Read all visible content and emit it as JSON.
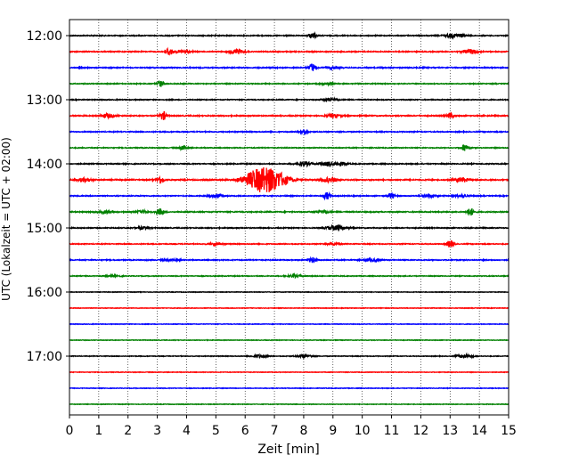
{
  "chart_data": {
    "type": "line",
    "title": "",
    "xlabel": "Zeit  [min]",
    "ylabel": "UTC (Lokalzeit = UTC + 02:00)",
    "xlim": [
      0,
      15
    ],
    "x_ticks": [
      "0",
      "1",
      "2",
      "3",
      "4",
      "5",
      "6",
      "7",
      "8",
      "9",
      "10",
      "11",
      "12",
      "13",
      "14",
      "15"
    ],
    "y_tick_labels": [
      "12:00",
      "13:00",
      "14:00",
      "15:00",
      "16:00",
      "17:00"
    ],
    "grid": "vertical dotted at each minute",
    "colors": [
      "#000000",
      "#ff0000",
      "#0000ff",
      "#008000"
    ],
    "series": [
      {
        "start": "12:00",
        "color": "#000000",
        "noise": 0.5,
        "events": [
          [
            8.3,
            3.5
          ],
          [
            13.0,
            1.5
          ],
          [
            13.3,
            1.5
          ]
        ]
      },
      {
        "start": "12:15",
        "color": "#ff0000",
        "noise": 0.5,
        "events": [
          [
            3.4,
            4.5
          ],
          [
            3.9,
            1.5
          ],
          [
            5.7,
            2.5
          ],
          [
            13.7,
            2.5
          ]
        ]
      },
      {
        "start": "12:30",
        "color": "#0000ff",
        "noise": 0.55,
        "events": [
          [
            8.3,
            4.5
          ],
          [
            9.0,
            1.2
          ]
        ]
      },
      {
        "start": "12:45",
        "color": "#008000",
        "noise": 0.45,
        "events": [
          [
            3.1,
            3.5
          ],
          [
            8.8,
            1.0
          ]
        ]
      },
      {
        "start": "13:00",
        "color": "#000000",
        "noise": 0.45,
        "events": [
          [
            8.9,
            1.8
          ]
        ]
      },
      {
        "start": "13:15",
        "color": "#ff0000",
        "noise": 0.55,
        "events": [
          [
            1.3,
            2.0
          ],
          [
            3.2,
            4.5
          ],
          [
            9.0,
            1.5
          ],
          [
            13.0,
            3.0
          ]
        ]
      },
      {
        "start": "13:30",
        "color": "#0000ff",
        "noise": 0.5,
        "events": [
          [
            8.0,
            3.5
          ]
        ]
      },
      {
        "start": "13:45",
        "color": "#008000",
        "noise": 0.45,
        "events": [
          [
            3.9,
            3.0
          ],
          [
            13.5,
            4.0
          ]
        ]
      },
      {
        "start": "14:00",
        "color": "#000000",
        "noise": 0.5,
        "events": [
          [
            8.0,
            2.5
          ],
          [
            8.8,
            2.0
          ],
          [
            9.2,
            1.5
          ]
        ]
      },
      {
        "start": "14:15",
        "color": "#ff0000",
        "noise": 0.6,
        "events": [
          [
            0.5,
            2.0
          ],
          [
            3.1,
            4.0
          ],
          [
            6.3,
            6.5
          ],
          [
            6.7,
            8.5
          ],
          [
            7.1,
            6.0
          ],
          [
            8.9,
            2.5
          ],
          [
            13.4,
            2.5
          ]
        ]
      },
      {
        "start": "14:30",
        "color": "#0000ff",
        "noise": 0.5,
        "events": [
          [
            5.0,
            2.0
          ],
          [
            8.8,
            4.0
          ],
          [
            11.0,
            3.0
          ],
          [
            12.3,
            1.5
          ],
          [
            13.4,
            1.5
          ]
        ]
      },
      {
        "start": "14:45",
        "color": "#008000",
        "noise": 0.55,
        "events": [
          [
            1.2,
            1.2
          ],
          [
            2.5,
            1.5
          ],
          [
            3.1,
            3.5
          ],
          [
            8.6,
            1.5
          ],
          [
            13.7,
            4.0
          ]
        ]
      },
      {
        "start": "15:00",
        "color": "#000000",
        "noise": 0.5,
        "events": [
          [
            2.5,
            1.2
          ],
          [
            9.0,
            2.0
          ],
          [
            9.3,
            1.5
          ]
        ]
      },
      {
        "start": "15:15",
        "color": "#ff0000",
        "noise": 0.45,
        "events": [
          [
            5.0,
            1.2
          ],
          [
            9.0,
            1.2
          ],
          [
            13.0,
            4.0
          ]
        ]
      },
      {
        "start": "15:30",
        "color": "#0000ff",
        "noise": 0.5,
        "events": [
          [
            3.5,
            1.2
          ],
          [
            8.3,
            3.0
          ],
          [
            10.3,
            1.5
          ]
        ]
      },
      {
        "start": "15:45",
        "color": "#008000",
        "noise": 0.4,
        "events": [
          [
            1.5,
            1.0
          ],
          [
            7.7,
            1.5
          ]
        ]
      },
      {
        "start": "16:00",
        "color": "#000000",
        "noise": 0.3,
        "events": []
      },
      {
        "start": "16:15",
        "color": "#ff0000",
        "noise": 0.3,
        "events": []
      },
      {
        "start": "16:30",
        "color": "#0000ff",
        "noise": 0.3,
        "events": []
      },
      {
        "start": "16:45",
        "color": "#008000",
        "noise": 0.3,
        "events": []
      },
      {
        "start": "17:00",
        "color": "#000000",
        "noise": 0.35,
        "events": [
          [
            6.5,
            1.6
          ],
          [
            8.0,
            1.8
          ],
          [
            13.5,
            2.0
          ]
        ]
      },
      {
        "start": "17:15",
        "color": "#ff0000",
        "noise": 0.3,
        "events": []
      },
      {
        "start": "17:30",
        "color": "#0000ff",
        "noise": 0.3,
        "events": []
      },
      {
        "start": "17:45",
        "color": "#008000",
        "noise": 0.3,
        "events": []
      }
    ]
  }
}
